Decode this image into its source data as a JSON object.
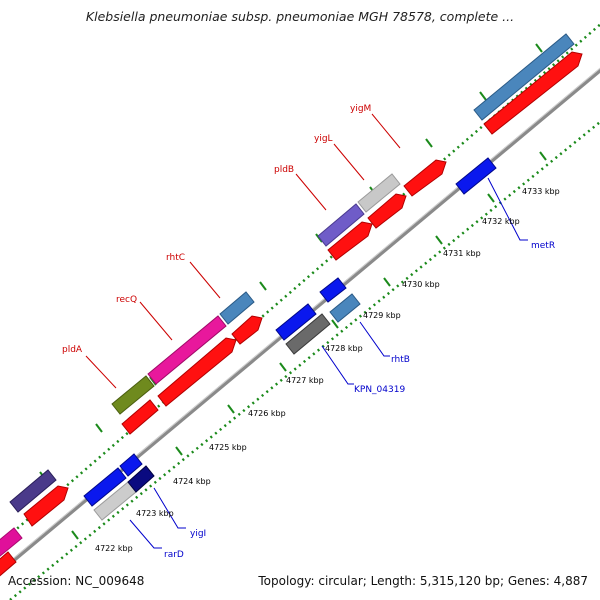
{
  "title": "Klebsiella pneumoniae subsp. pneumoniae MGH 78578, complete ...",
  "footer": {
    "accession": "Accession: NC_009648",
    "topology": "Topology: circular; Length: 5,315,120 bp; Genes: 4,887"
  },
  "colors": {
    "backbone": "#8a8a8a",
    "dots": "#1b8a1b",
    "forward_label": "#cc0000",
    "reverse_label": "#0000cc"
  },
  "scale": {
    "unit": "kbp",
    "ticks": [
      "4722 kbp",
      "4723 kbp",
      "4724 kbp",
      "4725 kbp",
      "4726 kbp",
      "4727 kbp",
      "4728 kbp",
      "4729 kbp",
      "4730 kbp",
      "4731 kbp",
      "4732 kbp",
      "4733 kbp"
    ]
  },
  "forward_labels": [
    "pldA",
    "recQ",
    "rhtC",
    "pldB",
    "yigL",
    "yigM"
  ],
  "reverse_labels": [
    "rarD",
    "yigI",
    "KPN_04319",
    "rhtB",
    "metR"
  ]
}
